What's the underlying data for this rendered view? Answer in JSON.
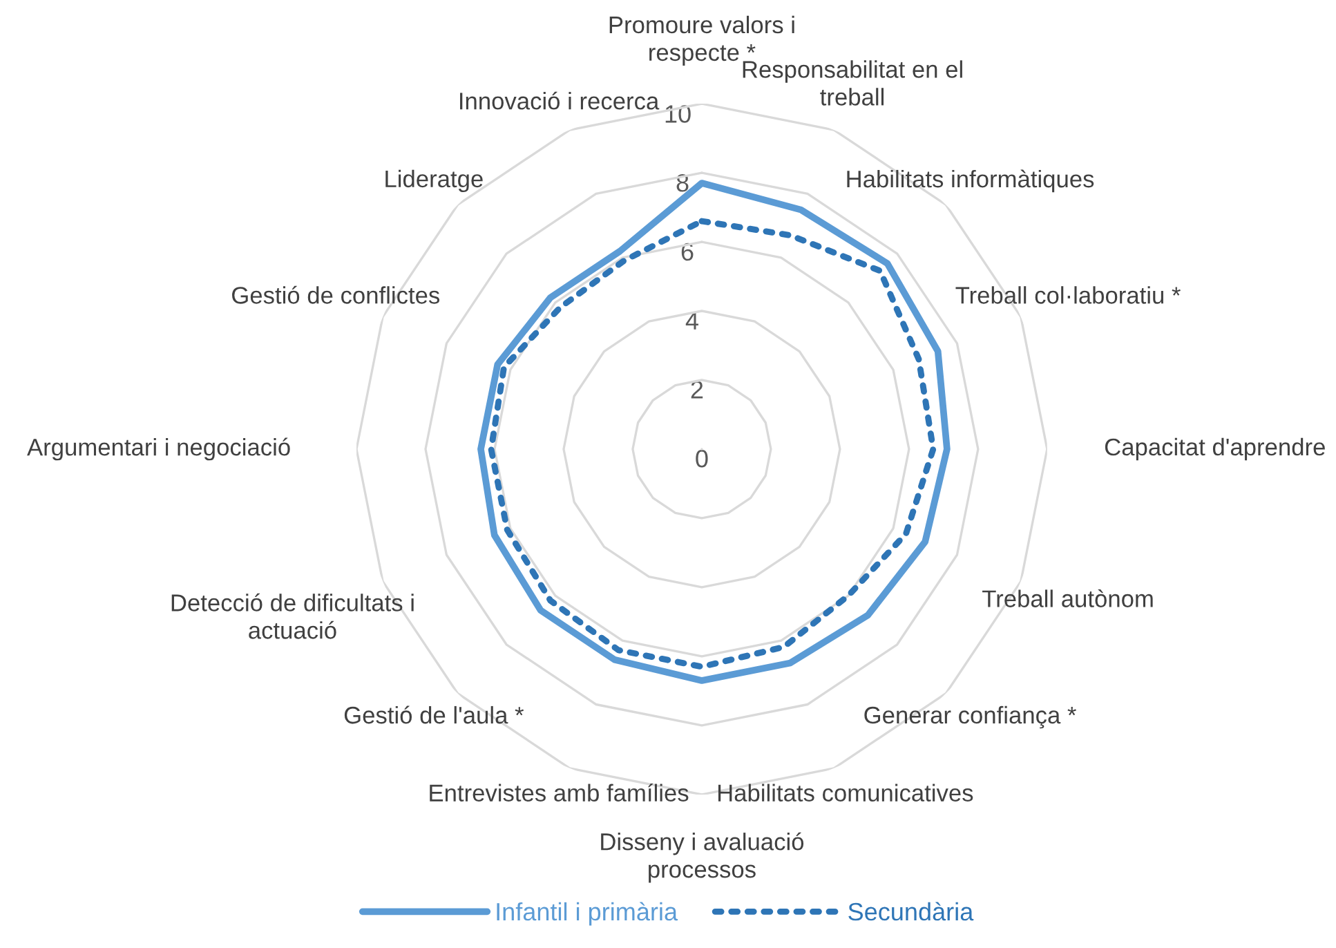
{
  "chart_data": {
    "type": "radar",
    "categories": [
      "Promoure valors i respecte *",
      "Responsabilitat en el treball",
      "Habilitats informàtiques",
      "Treball col·laboratiu *",
      "Capacitat d'aprendre",
      "Treball autònom",
      "Generar confiança *",
      "Habilitats comunicatives",
      "Disseny i avaluació processos",
      "Entrevistes amb famílies",
      "Gestió de l'aula *",
      "Detecció de dificultats i actuació",
      "Argumentari i negociació",
      "Gestió de conflictes",
      "Lideratge",
      "Innovació i recerca"
    ],
    "series": [
      {
        "name": "Infantil i primària",
        "color": "#5b9bd5",
        "line_style": "solid",
        "values": [
          7.7,
          7.5,
          7.6,
          7.4,
          7.1,
          7.0,
          6.8,
          6.7,
          6.7,
          6.6,
          6.6,
          6.5,
          6.4,
          6.4,
          6.2,
          6.2
        ]
      },
      {
        "name": "Secundària",
        "color": "#2e75b6",
        "line_style": "dotted",
        "values": [
          6.6,
          6.7,
          7.3,
          6.8,
          6.7,
          6.4,
          6.0,
          6.2,
          6.3,
          6.3,
          6.2,
          6.1,
          6.1,
          6.2,
          5.8,
          5.9
        ]
      }
    ],
    "ylim": [
      0,
      10
    ],
    "yticks": [
      0,
      2,
      4,
      6,
      8,
      10
    ],
    "grid": true,
    "legend": "bottom"
  }
}
